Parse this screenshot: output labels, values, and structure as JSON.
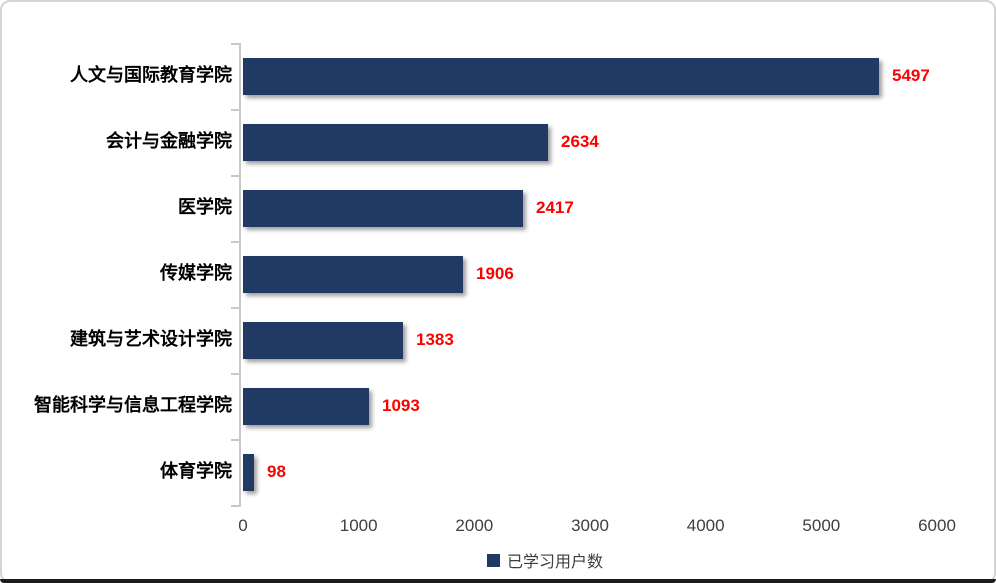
{
  "chart_data": {
    "type": "bar",
    "orientation": "horizontal",
    "title": "",
    "categories": [
      "人文与国际教育学院",
      "会计与金融学院",
      "医学院",
      "传媒学院",
      "建筑与艺术设计学院",
      "智能科学与信息工程学院",
      "体育学院"
    ],
    "values": [
      5497,
      2634,
      2417,
      1906,
      1383,
      1093,
      98
    ],
    "value_labels": [
      "5497",
      "2634",
      "2417",
      "1906",
      "1383",
      "1093",
      "98"
    ],
    "xlabel": "",
    "ylabel": "",
    "xlim": [
      0,
      6000
    ],
    "x_ticks": [
      "0",
      "1000",
      "2000",
      "3000",
      "4000",
      "5000",
      "6000"
    ],
    "x_tick_values": [
      0,
      1000,
      2000,
      3000,
      4000,
      5000,
      6000
    ],
    "grid": false,
    "legend_position": "bottom",
    "legend_label": "已学习用户数"
  },
  "colors": {
    "bar": "#203a64",
    "value_label": "#ff0000",
    "axis": "#c8c8c8",
    "tick_text": "#404040",
    "category_text": "#000000",
    "legend_swatch": "#203a64"
  }
}
